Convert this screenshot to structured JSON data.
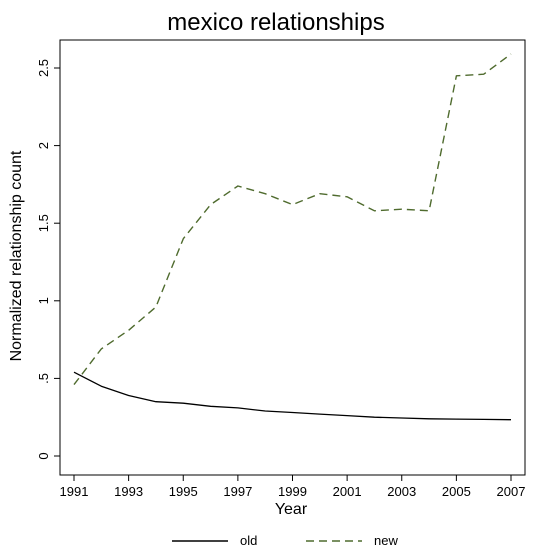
{
  "chart_data": {
    "type": "line",
    "title": "mexico relationships",
    "xlabel": "Year",
    "ylabel": "Normalized relationship count",
    "xlim": [
      1991,
      2007
    ],
    "ylim": [
      0,
      2.5
    ],
    "x_ticks": [
      1991,
      1993,
      1995,
      1997,
      1999,
      2001,
      2003,
      2005,
      2007
    ],
    "x_tick_labels": [
      "1991",
      "1993",
      "1995",
      "1997",
      "1999",
      "2001",
      "2003",
      "2005",
      "2007"
    ],
    "y_ticks": [
      0,
      0.5,
      1,
      1.5,
      2,
      2.5
    ],
    "y_tick_labels": [
      "0",
      ".5",
      "1",
      "1.5",
      "2",
      "2.5"
    ],
    "grid": false,
    "legend_position": "bottom",
    "x": [
      1991,
      1992,
      1993,
      1994,
      1995,
      1996,
      1997,
      1998,
      1999,
      2000,
      2001,
      2002,
      2003,
      2004,
      2005,
      2006,
      2007
    ],
    "series": [
      {
        "name": "old",
        "color": "#000000",
        "style": "solid",
        "values": [
          0.54,
          0.45,
          0.39,
          0.35,
          0.34,
          0.32,
          0.31,
          0.29,
          0.28,
          0.27,
          0.26,
          0.25,
          0.245,
          0.24,
          0.238,
          0.236,
          0.234
        ]
      },
      {
        "name": "new",
        "color": "#4f6b2e",
        "style": "dashed",
        "values": [
          0.46,
          0.69,
          0.81,
          0.96,
          1.4,
          1.62,
          1.74,
          1.69,
          1.62,
          1.69,
          1.67,
          1.58,
          1.59,
          1.58,
          2.45,
          2.46,
          2.59
        ]
      }
    ]
  }
}
